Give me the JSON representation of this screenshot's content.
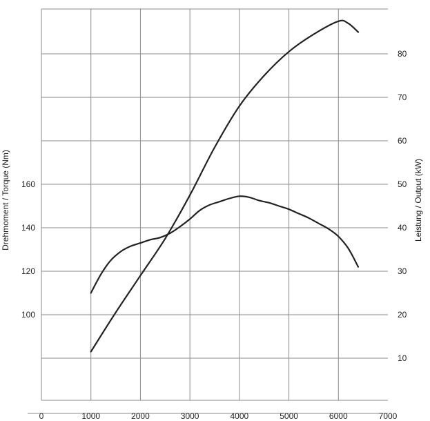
{
  "chart_data": {
    "type": "line",
    "xlabel": "",
    "ylabel_left": "Drehmoment / Torque (Nm)",
    "ylabel_right": "Leistung / Output (kW)",
    "x_ticks": [
      "0",
      "1000",
      "2000",
      "3000",
      "4000",
      "5000",
      "6000",
      "7000"
    ],
    "y_left_ticks": [
      "100",
      "120",
      "140",
      "160"
    ],
    "y_right_ticks": [
      "10",
      "20",
      "30",
      "40",
      "50",
      "60",
      "70",
      "80"
    ],
    "xlim": [
      0,
      7000
    ],
    "ylim_right": [
      0,
      80
    ],
    "ylim_left": [
      60,
      180
    ],
    "grid": true,
    "series": [
      {
        "axis": "left",
        "unit": "Nm",
        "x": [
          1000,
          1200,
          1400,
          1600,
          1800,
          2000,
          2200,
          2400,
          2600,
          2800,
          3000,
          3200,
          3400,
          3600,
          3800,
          4000,
          4200,
          4400,
          4600,
          4800,
          5000,
          5200,
          5400,
          5600,
          5800,
          6000,
          6200,
          6400
        ],
        "values": [
          110,
          118.5,
          125,
          129,
          131.5,
          133,
          134.5,
          135.5,
          137.5,
          140.5,
          144,
          148,
          150.5,
          152,
          153.5,
          154.5,
          154,
          152.5,
          151.5,
          150,
          148.5,
          146.5,
          144.5,
          142,
          139.5,
          136,
          130.5,
          122
        ]
      },
      {
        "axis": "right",
        "unit": "kW",
        "x": [
          1000,
          1500,
          2000,
          2500,
          3000,
          3500,
          4000,
          4500,
          5000,
          5500,
          6000,
          6200,
          6400
        ],
        "values": [
          11.5,
          20.5,
          29,
          37.5,
          47.5,
          58.5,
          68,
          75,
          80.5,
          84.5,
          87.5,
          87,
          85
        ]
      }
    ]
  }
}
